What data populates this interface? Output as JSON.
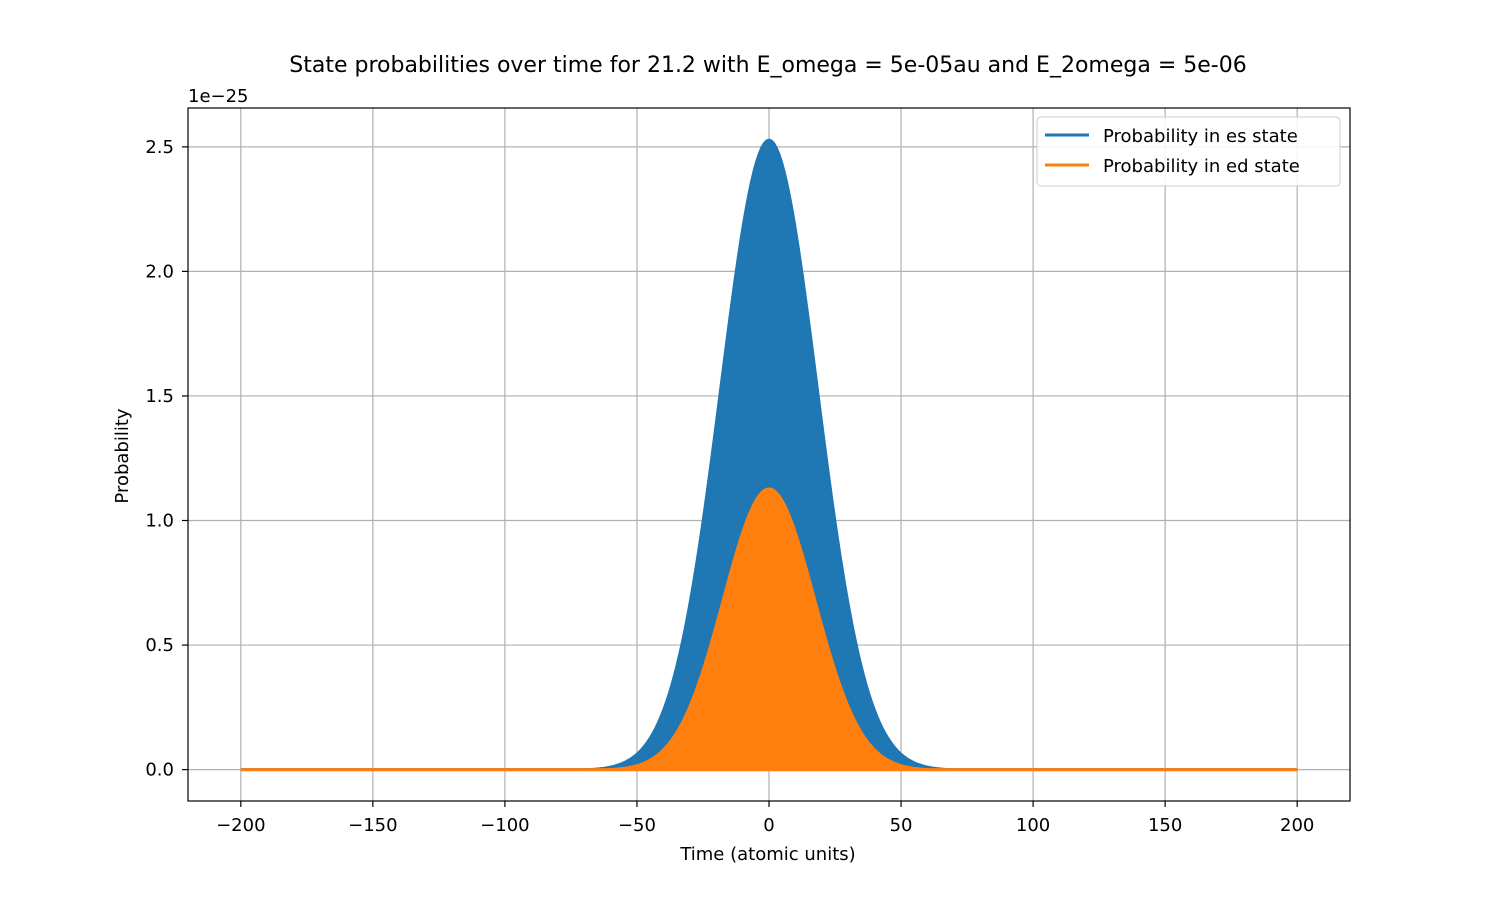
{
  "chart_data": {
    "type": "area",
    "title": "State probabilities over time for 21.2 with E_omega = 5e-05au and E_2omega = 5e-06",
    "xlabel": "Time (atomic units)",
    "ylabel": "Probability",
    "y_offset_label": "1e−25",
    "xlim": [
      -220,
      220
    ],
    "ylim": [
      -0.126,
      2.656
    ],
    "x_ticks": [
      -200,
      -150,
      -100,
      -50,
      0,
      50,
      100,
      150,
      200
    ],
    "x_tick_labels": [
      "−200",
      "−150",
      "−100",
      "−50",
      "0",
      "50",
      "100",
      "150",
      "200"
    ],
    "y_ticks": [
      0.0,
      0.5,
      1.0,
      1.5,
      2.0,
      2.5
    ],
    "y_tick_labels": [
      "0.0",
      "0.5",
      "1.0",
      "1.5",
      "2.0",
      "2.5"
    ],
    "grid": true,
    "legend_position": "top-right",
    "x_range": [
      -200,
      200
    ],
    "series": [
      {
        "name": "Probability in es state",
        "color": "#1f77b4",
        "envelope_peak_upper": 2.53,
        "envelope_peak_lower": 0.21,
        "envelope_sigma": 18.5
      },
      {
        "name": "Probability in ed state",
        "color": "#ff7f0e",
        "envelope_peak_upper": 1.13,
        "envelope_peak_lower": 0.0,
        "envelope_sigma": 17.5
      }
    ]
  }
}
